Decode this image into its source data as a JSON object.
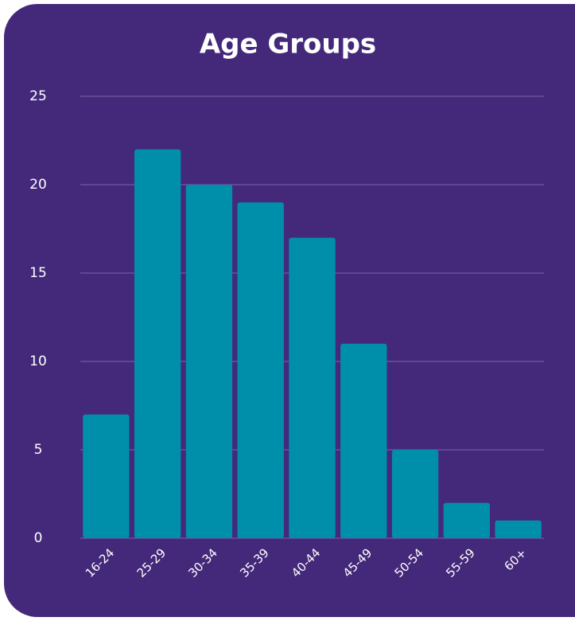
{
  "chart_data": {
    "type": "bar",
    "title": "Age Groups",
    "categories": [
      "16-24",
      "25-29",
      "30-34",
      "35-39",
      "40-44",
      "45-49",
      "50-54",
      "55-59",
      "60+"
    ],
    "values": [
      7,
      22,
      20,
      19,
      17,
      11,
      5,
      2,
      1
    ],
    "color": "#008fab",
    "ylim": [
      0,
      25
    ],
    "yticks": [
      0,
      5,
      10,
      15,
      20,
      25
    ],
    "grid": true
  }
}
